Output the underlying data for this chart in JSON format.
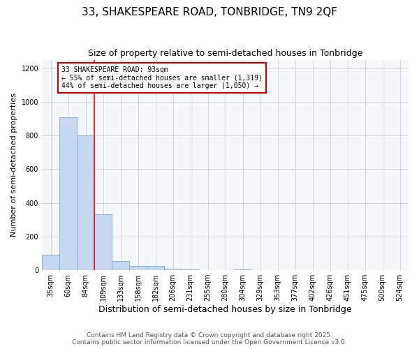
{
  "title": "33, SHAKESPEARE ROAD, TONBRIDGE, TN9 2QF",
  "subtitle": "Size of property relative to semi-detached houses in Tonbridge",
  "xlabel": "Distribution of semi-detached houses by size in Tonbridge",
  "ylabel": "Number of semi-detached properties",
  "categories": [
    "35sqm",
    "60sqm",
    "84sqm",
    "109sqm",
    "133sqm",
    "158sqm",
    "182sqm",
    "206sqm",
    "231sqm",
    "255sqm",
    "280sqm",
    "304sqm",
    "329sqm",
    "353sqm",
    "377sqm",
    "402sqm",
    "426sqm",
    "451sqm",
    "475sqm",
    "500sqm",
    "524sqm"
  ],
  "values": [
    90,
    910,
    800,
    330,
    55,
    25,
    25,
    10,
    3,
    0,
    0,
    5,
    0,
    0,
    0,
    0,
    0,
    0,
    0,
    0,
    0
  ],
  "bar_color": "#c6d9f0",
  "bar_edge_color": "#7aabdb",
  "reference_line_x": 2.5,
  "annotation_text": "33 SHAKESPEARE ROAD: 93sqm\n← 55% of semi-detached houses are smaller (1,319)\n44% of semi-detached houses are larger (1,050) →",
  "annotation_box_color": "#ffffff",
  "annotation_box_edge_color": "#cc0000",
  "footer_text": "Contains HM Land Registry data © Crown copyright and database right 2025.\nContains public sector information licensed under the Open Government Licence v3.0.",
  "ylim": [
    0,
    1250
  ],
  "background_color": "#ffffff",
  "plot_background": "#f5f7fa",
  "grid_color": "#d0d8e0",
  "title_fontsize": 11,
  "subtitle_fontsize": 9,
  "xlabel_fontsize": 9,
  "ylabel_fontsize": 8,
  "tick_fontsize": 7,
  "footer_fontsize": 6.5
}
